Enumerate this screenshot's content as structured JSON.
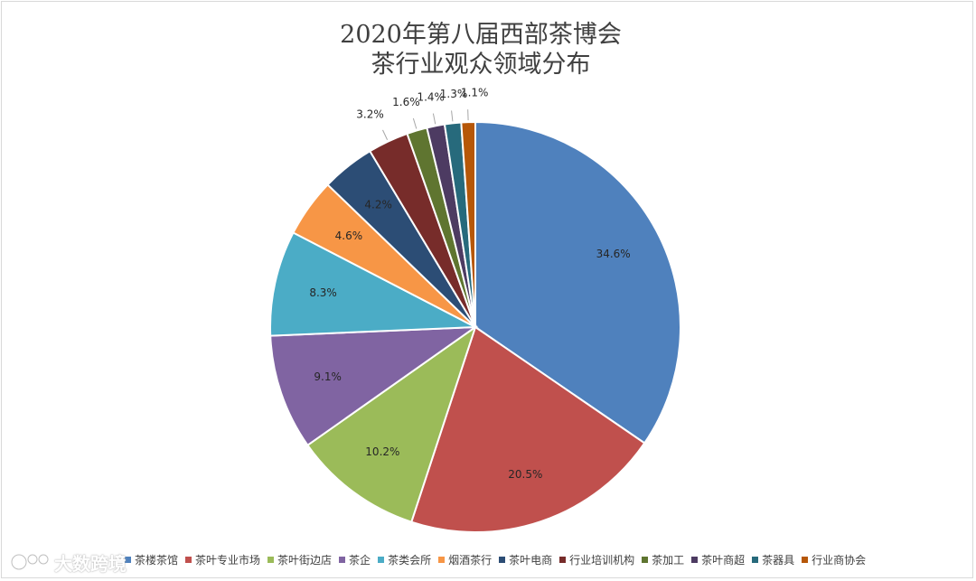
{
  "chart_data": {
    "type": "pie",
    "title_lines": [
      "2020年第八届西部茶博会",
      "茶行业观众领域分布"
    ],
    "categories": [
      "茶楼茶馆",
      "茶叶专业市场",
      "茶叶街边店",
      "茶企",
      "茶类会所",
      "烟酒茶行",
      "茶叶电商",
      "行业培训机构",
      "茶加工",
      "茶叶商超",
      "茶器具",
      "行业商协会"
    ],
    "values": [
      34.6,
      20.5,
      10.2,
      9.1,
      8.3,
      4.6,
      4.2,
      3.2,
      1.6,
      1.4,
      1.3,
      1.1
    ],
    "data_labels": [
      "34.6%",
      "20.5%",
      "10.2%",
      "9.1%",
      "8.3%",
      "4.6%",
      "4.2%",
      "3.2%",
      "1.6%",
      "1.4%",
      "1.3%",
      "1.1%"
    ],
    "colors": [
      "#4F81BD",
      "#C0504D",
      "#9BBB59",
      "#8064A2",
      "#4BACC6",
      "#F79646",
      "#2C4D75",
      "#772C2A",
      "#5F7530",
      "#4D3B62",
      "#276A7C",
      "#B65708"
    ],
    "legend_position": "bottom",
    "unit": "%"
  },
  "watermark": {
    "text": "大数跨境",
    "icon": "brand-logo-icon"
  }
}
